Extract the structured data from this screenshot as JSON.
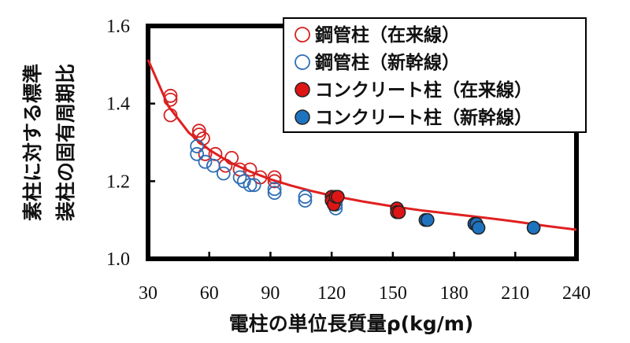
{
  "chart_data": {
    "type": "scatter",
    "title": "",
    "xlabel": "電柱の単位長質量ρ(kg/m)",
    "ylabel": [
      "素柱に対する標準",
      "装柱の固有周期比"
    ],
    "xlim": [
      30,
      240
    ],
    "ylim": [
      1.0,
      1.6
    ],
    "x_ticks": [
      "30",
      "60",
      "90",
      "120",
      "150",
      "180",
      "210",
      "240"
    ],
    "y_ticks": [
      "1.0",
      "1.2",
      "1.4",
      "1.6"
    ],
    "grid": false,
    "legend_position": "top-right",
    "fit_curve": {
      "color": "#e02020",
      "points": [
        [
          30,
          1.513
        ],
        [
          40,
          1.393
        ],
        [
          50,
          1.325
        ],
        [
          60,
          1.281
        ],
        [
          70,
          1.249
        ],
        [
          80,
          1.225
        ],
        [
          90,
          1.205
        ],
        [
          100,
          1.189
        ],
        [
          110,
          1.175
        ],
        [
          120,
          1.163
        ],
        [
          135,
          1.148
        ],
        [
          150,
          1.135
        ],
        [
          165,
          1.124
        ],
        [
          180,
          1.115
        ],
        [
          195,
          1.106
        ],
        [
          210,
          1.096
        ],
        [
          225,
          1.085
        ],
        [
          240,
          1.075
        ]
      ]
    },
    "series": [
      {
        "name": "鋼管柱（在来線）",
        "marker": "open-circle",
        "color": "#d62020",
        "points": [
          [
            41,
            1.42
          ],
          [
            41,
            1.41
          ],
          [
            41,
            1.37
          ],
          [
            55,
            1.33
          ],
          [
            55,
            1.32
          ],
          [
            57,
            1.31
          ],
          [
            58,
            1.27
          ],
          [
            63,
            1.27
          ],
          [
            68,
            1.24
          ],
          [
            71,
            1.26
          ],
          [
            75,
            1.23
          ],
          [
            80,
            1.23
          ],
          [
            85,
            1.21
          ],
          [
            92,
            1.21
          ],
          [
            92,
            1.2
          ],
          [
            122,
            1.15
          ]
        ]
      },
      {
        "name": "鋼管柱（新幹線）",
        "marker": "open-circle",
        "color": "#2f6fb5",
        "points": [
          [
            54,
            1.29
          ],
          [
            54,
            1.27
          ],
          [
            58,
            1.25
          ],
          [
            62,
            1.24
          ],
          [
            67,
            1.22
          ],
          [
            75,
            1.21
          ],
          [
            77,
            1.2
          ],
          [
            80,
            1.19
          ],
          [
            82,
            1.19
          ],
          [
            92,
            1.18
          ],
          [
            92,
            1.17
          ],
          [
            107,
            1.16
          ],
          [
            107,
            1.15
          ],
          [
            122,
            1.14
          ],
          [
            122,
            1.13
          ]
        ]
      },
      {
        "name": "コンクリート柱（在来線）",
        "marker": "filled-circle",
        "color": "#dd1515",
        "points": [
          [
            120,
            1.16
          ],
          [
            120,
            1.15
          ],
          [
            121,
            1.14
          ],
          [
            122,
            1.16
          ],
          [
            123,
            1.16
          ],
          [
            152,
            1.13
          ],
          [
            152,
            1.12
          ],
          [
            153,
            1.12
          ]
        ]
      },
      {
        "name": "コンクリート柱（新幹線）",
        "marker": "filled-circle",
        "color": "#1e73c0",
        "points": [
          [
            166,
            1.1
          ],
          [
            167,
            1.1
          ],
          [
            190,
            1.09
          ],
          [
            190,
            1.09
          ],
          [
            191,
            1.09
          ],
          [
            192,
            1.08
          ],
          [
            219,
            1.08
          ],
          [
            219,
            1.08
          ]
        ]
      }
    ]
  }
}
